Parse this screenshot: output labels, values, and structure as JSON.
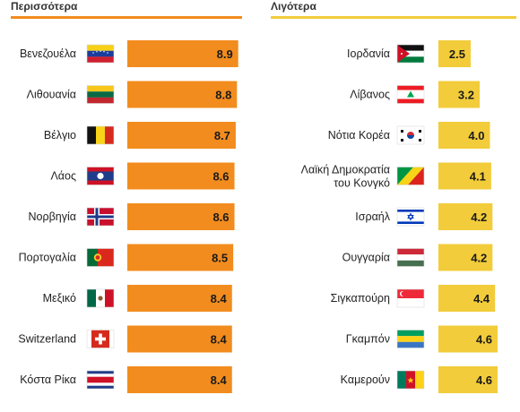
{
  "chart_data": [
    {
      "type": "bar",
      "title": "Περισσότερα",
      "color": "#f28c1e",
      "categories": [
        "Βενεζουέλα",
        "Λιθουανία",
        "Βέλγιο",
        "Λάος",
        "Νορβηγία",
        "Πορτογαλία",
        "Μεξικό",
        "Switzerland",
        "Κόστα Ρίκα"
      ],
      "values": [
        8.9,
        8.8,
        8.7,
        8.6,
        8.6,
        8.5,
        8.4,
        8.4,
        8.4
      ],
      "flags": [
        "venezuela-flag-icon",
        "lithuania-flag-icon",
        "belgium-flag-icon",
        "laos-flag-icon",
        "norway-flag-icon",
        "portugal-flag-icon",
        "mexico-flag-icon",
        "switzerland-flag-icon",
        "costa-rica-flag-icon"
      ],
      "value_labels": [
        "8.9",
        "8.8",
        "8.7",
        "8.6",
        "8.6",
        "8.5",
        "8.4",
        "8.4",
        "8.4"
      ]
    },
    {
      "type": "bar",
      "title": "Λιγότερα",
      "color": "#f2cc3a",
      "categories": [
        "Ιορδανία",
        "Λίβανος",
        "Νότια Κορέα",
        "Λαϊκή Δημοκρατία του Κονγκό",
        "Ισραήλ",
        "Ουγγαρία",
        "Σιγκαπούρη",
        "Γκαμπόν",
        "Καμερούν"
      ],
      "values": [
        2.5,
        3.2,
        4.0,
        4.1,
        4.2,
        4.2,
        4.4,
        4.6,
        4.6
      ],
      "flags": [
        "jordan-flag-icon",
        "lebanon-flag-icon",
        "south-korea-flag-icon",
        "congo-flag-icon",
        "israel-flag-icon",
        "hungary-flag-icon",
        "singapore-flag-icon",
        "gabon-flag-icon",
        "cameroon-flag-icon"
      ],
      "value_labels": [
        "2.5",
        "3.2",
        "4.0",
        "4.1",
        "4.2",
        "4.2",
        "4.4",
        "4.6",
        "4.6"
      ]
    }
  ]
}
